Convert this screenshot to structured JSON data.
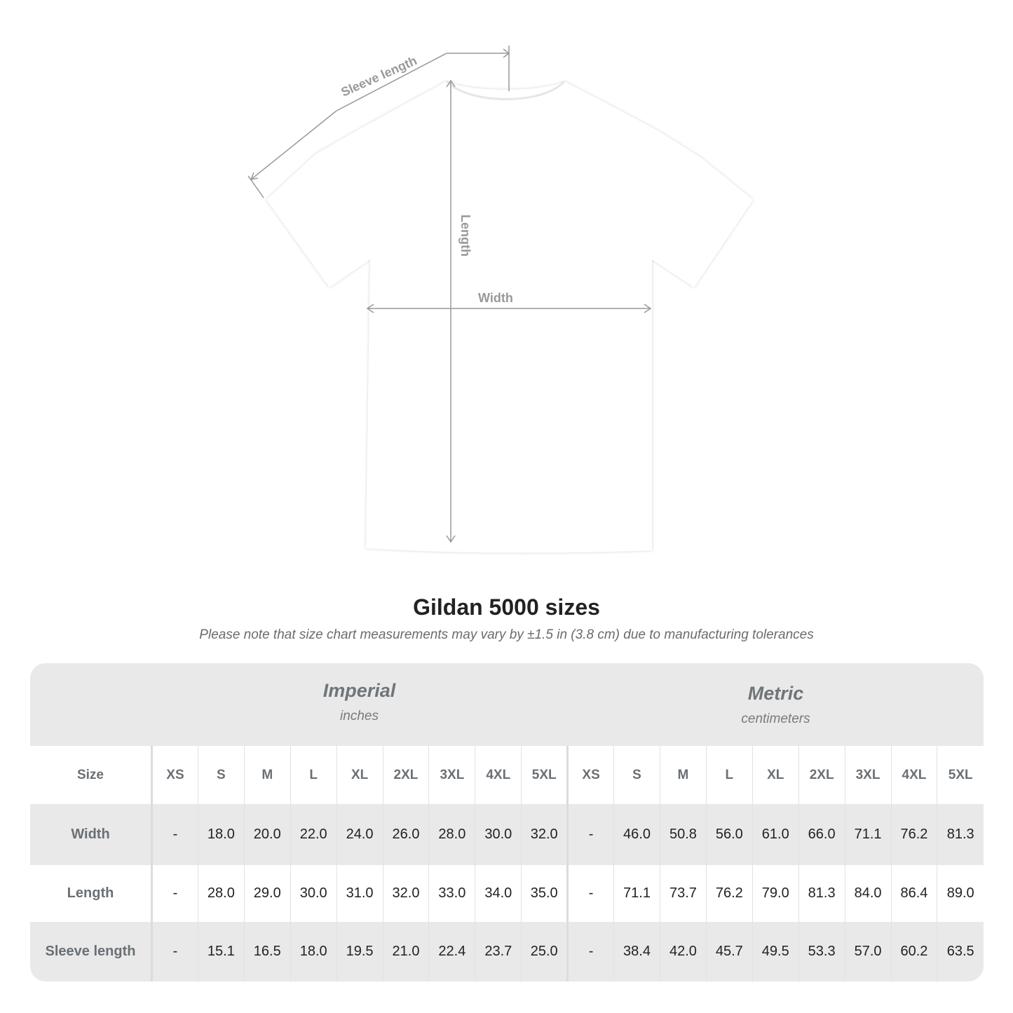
{
  "diagram": {
    "labels": {
      "sleeve": "Sleeve length",
      "length": "Length",
      "width": "Width"
    },
    "shirt_color": "#ffffff",
    "line_color": "#999999"
  },
  "title": "Gildan 5000 sizes",
  "subtitle": "Please note that size chart measurements may vary by ±1.5 in (3.8 cm) due to manufacturing tolerances",
  "imperial": {
    "name": "Imperial",
    "unit": "inches"
  },
  "metric": {
    "name": "Metric",
    "unit": "centimeters"
  },
  "table": {
    "size_label": "Size",
    "sizes": [
      "XS",
      "S",
      "M",
      "L",
      "XL",
      "2XL",
      "3XL",
      "4XL",
      "5XL"
    ],
    "rows": [
      {
        "label": "Width",
        "imperial": [
          "-",
          "18.0",
          "20.0",
          "22.0",
          "24.0",
          "26.0",
          "28.0",
          "30.0",
          "32.0"
        ],
        "metric": [
          "-",
          "46.0",
          "50.8",
          "56.0",
          "61.0",
          "66.0",
          "71.1",
          "76.2",
          "81.3"
        ]
      },
      {
        "label": "Length",
        "imperial": [
          "-",
          "28.0",
          "29.0",
          "30.0",
          "31.0",
          "32.0",
          "33.0",
          "34.0",
          "35.0"
        ],
        "metric": [
          "-",
          "71.1",
          "73.7",
          "76.2",
          "79.0",
          "81.3",
          "84.0",
          "86.4",
          "89.0"
        ]
      },
      {
        "label": "Sleeve length",
        "imperial": [
          "-",
          "15.1",
          "16.5",
          "18.0",
          "19.5",
          "21.0",
          "22.4",
          "23.7",
          "25.0"
        ],
        "metric": [
          "-",
          "38.4",
          "42.0",
          "45.7",
          "49.5",
          "53.3",
          "57.0",
          "60.2",
          "63.5"
        ]
      }
    ]
  }
}
